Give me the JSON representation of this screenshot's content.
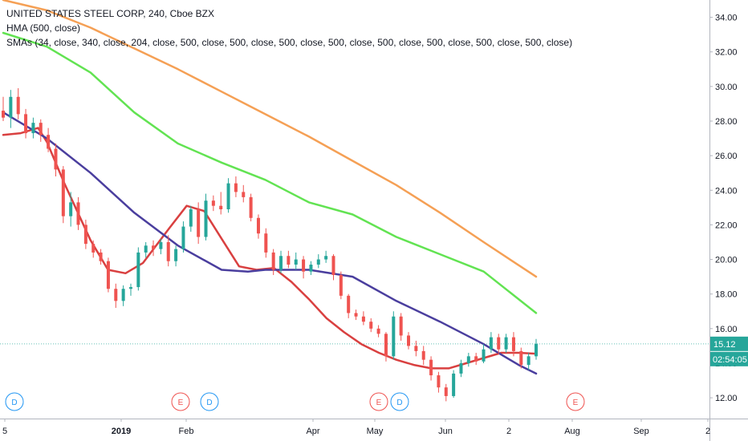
{
  "legend": {
    "line1": "UNITED STATES STEEL CORP, 240, Cboe BZX",
    "line2": "HMA (500, close)",
    "line3": "SMAs (34, close, 340, close, 204, close, 500, close, 500, close, 500, close, 500, close, 500, close, 500, close, 500, close, 500, close)"
  },
  "colors": {
    "up": "#26a69a",
    "down": "#ef5350",
    "sma34": "#d94040",
    "sma204": "#4a3e9e",
    "sma340": "#62e352",
    "sma500": "#f5a055",
    "last_price_bg": "#26a69a",
    "countdown_bg": "#26a69a",
    "event_d": "#2196f3",
    "event_e": "#ef5350"
  },
  "last_price": {
    "label": "15.12",
    "value": 15.12
  },
  "countdown": {
    "label": "02:54:05"
  },
  "chart_data": {
    "type": "candlestick",
    "ylim": [
      10.8,
      35.0
    ],
    "y_ticks": [
      "12.00",
      "14.00",
      "16.00",
      "18.00",
      "20.00",
      "22.00",
      "24.00",
      "26.00",
      "28.00",
      "30.00",
      "32.00",
      "34.00"
    ],
    "x_ticks": [
      "5",
      "2019",
      "Feb",
      "Apr",
      "May",
      "Jun",
      "2",
      "Aug",
      "Sep",
      "2"
    ],
    "candles": [
      {
        "o": 28.6,
        "h": 29.4,
        "l": 28.0,
        "c": 28.2
      },
      {
        "o": 28.2,
        "h": 29.8,
        "l": 27.6,
        "c": 29.4
      },
      {
        "o": 29.4,
        "h": 29.9,
        "l": 28.1,
        "c": 28.4
      },
      {
        "o": 28.4,
        "h": 28.7,
        "l": 27.0,
        "c": 27.3
      },
      {
        "o": 27.3,
        "h": 28.2,
        "l": 27.0,
        "c": 27.9
      },
      {
        "o": 27.9,
        "h": 28.1,
        "l": 26.8,
        "c": 27.2
      },
      {
        "o": 27.2,
        "h": 27.6,
        "l": 26.2,
        "c": 26.4
      },
      {
        "o": 26.4,
        "h": 26.7,
        "l": 24.8,
        "c": 25.2
      },
      {
        "o": 25.2,
        "h": 25.4,
        "l": 22.1,
        "c": 22.5
      },
      {
        "o": 22.5,
        "h": 23.9,
        "l": 21.9,
        "c": 23.3
      },
      {
        "o": 23.3,
        "h": 23.6,
        "l": 21.7,
        "c": 22.0
      },
      {
        "o": 22.0,
        "h": 22.3,
        "l": 20.6,
        "c": 20.9
      },
      {
        "o": 20.9,
        "h": 21.1,
        "l": 20.1,
        "c": 20.4
      },
      {
        "o": 20.4,
        "h": 20.6,
        "l": 19.7,
        "c": 19.9
      },
      {
        "o": 19.9,
        "h": 20.1,
        "l": 18.1,
        "c": 18.3
      },
      {
        "o": 18.3,
        "h": 18.6,
        "l": 17.2,
        "c": 17.6
      },
      {
        "o": 17.6,
        "h": 18.5,
        "l": 17.3,
        "c": 18.3
      },
      {
        "o": 18.3,
        "h": 18.6,
        "l": 17.9,
        "c": 18.4
      },
      {
        "o": 18.4,
        "h": 20.7,
        "l": 18.2,
        "c": 20.4
      },
      {
        "o": 20.4,
        "h": 21.0,
        "l": 20.1,
        "c": 20.8
      },
      {
        "o": 20.8,
        "h": 21.1,
        "l": 20.2,
        "c": 20.6
      },
      {
        "o": 20.6,
        "h": 21.2,
        "l": 20.3,
        "c": 21.0
      },
      {
        "o": 21.0,
        "h": 21.4,
        "l": 19.6,
        "c": 19.9
      },
      {
        "o": 19.9,
        "h": 20.8,
        "l": 19.6,
        "c": 20.6
      },
      {
        "o": 20.6,
        "h": 22.2,
        "l": 20.4,
        "c": 21.9
      },
      {
        "o": 21.9,
        "h": 23.1,
        "l": 21.6,
        "c": 22.9
      },
      {
        "o": 22.9,
        "h": 23.3,
        "l": 20.9,
        "c": 21.3
      },
      {
        "o": 21.3,
        "h": 23.8,
        "l": 21.1,
        "c": 23.4
      },
      {
        "o": 23.4,
        "h": 23.7,
        "l": 22.8,
        "c": 23.1
      },
      {
        "o": 23.1,
        "h": 23.9,
        "l": 22.6,
        "c": 22.9
      },
      {
        "o": 22.9,
        "h": 24.7,
        "l": 22.7,
        "c": 24.4
      },
      {
        "o": 24.4,
        "h": 24.8,
        "l": 23.6,
        "c": 23.9
      },
      {
        "o": 23.9,
        "h": 24.3,
        "l": 23.3,
        "c": 23.6
      },
      {
        "o": 23.6,
        "h": 23.8,
        "l": 22.2,
        "c": 22.4
      },
      {
        "o": 22.4,
        "h": 22.6,
        "l": 21.2,
        "c": 21.5
      },
      {
        "o": 21.5,
        "h": 21.8,
        "l": 20.1,
        "c": 20.4
      },
      {
        "o": 20.4,
        "h": 20.6,
        "l": 19.1,
        "c": 19.4
      },
      {
        "o": 19.4,
        "h": 20.5,
        "l": 19.2,
        "c": 20.2
      },
      {
        "o": 20.2,
        "h": 20.5,
        "l": 19.5,
        "c": 19.7
      },
      {
        "o": 19.7,
        "h": 20.4,
        "l": 19.4,
        "c": 20.0
      },
      {
        "o": 20.0,
        "h": 20.2,
        "l": 18.9,
        "c": 19.3
      },
      {
        "o": 19.3,
        "h": 19.9,
        "l": 19.1,
        "c": 19.7
      },
      {
        "o": 19.7,
        "h": 20.3,
        "l": 19.5,
        "c": 20.0
      },
      {
        "o": 20.0,
        "h": 20.5,
        "l": 19.8,
        "c": 20.2
      },
      {
        "o": 20.2,
        "h": 20.3,
        "l": 18.8,
        "c": 19.1
      },
      {
        "o": 19.1,
        "h": 19.3,
        "l": 17.7,
        "c": 17.9
      },
      {
        "o": 17.9,
        "h": 18.0,
        "l": 16.6,
        "c": 16.9
      },
      {
        "o": 16.9,
        "h": 17.1,
        "l": 16.5,
        "c": 16.7
      },
      {
        "o": 16.7,
        "h": 17.0,
        "l": 16.2,
        "c": 16.4
      },
      {
        "o": 16.4,
        "h": 16.6,
        "l": 15.8,
        "c": 16.0
      },
      {
        "o": 16.0,
        "h": 16.2,
        "l": 15.5,
        "c": 15.7
      },
      {
        "o": 15.7,
        "h": 15.8,
        "l": 14.1,
        "c": 14.4
      },
      {
        "o": 14.4,
        "h": 17.0,
        "l": 14.2,
        "c": 16.7
      },
      {
        "o": 16.7,
        "h": 16.9,
        "l": 15.3,
        "c": 15.6
      },
      {
        "o": 15.6,
        "h": 15.8,
        "l": 14.8,
        "c": 15.0
      },
      {
        "o": 15.0,
        "h": 15.3,
        "l": 14.4,
        "c": 14.7
      },
      {
        "o": 14.7,
        "h": 15.0,
        "l": 13.9,
        "c": 14.2
      },
      {
        "o": 14.2,
        "h": 14.4,
        "l": 13.0,
        "c": 13.3
      },
      {
        "o": 13.3,
        "h": 13.5,
        "l": 12.3,
        "c": 12.6
      },
      {
        "o": 12.6,
        "h": 12.8,
        "l": 11.8,
        "c": 12.1
      },
      {
        "o": 12.1,
        "h": 13.6,
        "l": 12.0,
        "c": 13.4
      },
      {
        "o": 13.4,
        "h": 14.2,
        "l": 13.2,
        "c": 14.0
      },
      {
        "o": 14.0,
        "h": 14.6,
        "l": 13.8,
        "c": 14.4
      },
      {
        "o": 14.4,
        "h": 14.6,
        "l": 13.9,
        "c": 14.1
      },
      {
        "o": 14.1,
        "h": 15.1,
        "l": 14.0,
        "c": 14.8
      },
      {
        "o": 14.8,
        "h": 15.8,
        "l": 14.6,
        "c": 15.5
      },
      {
        "o": 15.5,
        "h": 15.7,
        "l": 14.5,
        "c": 14.8
      },
      {
        "o": 14.8,
        "h": 15.7,
        "l": 14.6,
        "c": 15.5
      },
      {
        "o": 15.5,
        "h": 15.8,
        "l": 14.4,
        "c": 14.7
      },
      {
        "o": 14.7,
        "h": 14.9,
        "l": 13.7,
        "c": 13.9
      },
      {
        "o": 13.9,
        "h": 14.6,
        "l": 13.6,
        "c": 14.4
      },
      {
        "o": 14.4,
        "h": 15.4,
        "l": 14.2,
        "c": 15.12
      }
    ],
    "series": [
      {
        "name": "SMA 34",
        "key": "sma34",
        "points": [
          [
            0,
            27.2
          ],
          [
            4,
            27.3
          ],
          [
            8,
            27.6
          ],
          [
            10,
            26.8
          ],
          [
            14,
            24.4
          ],
          [
            20,
            21.1
          ],
          [
            24,
            19.4
          ],
          [
            28,
            19.2
          ],
          [
            32,
            19.8
          ],
          [
            38,
            21.8
          ],
          [
            42,
            23.1
          ],
          [
            46,
            22.8
          ],
          [
            50,
            21.2
          ],
          [
            54,
            19.6
          ],
          [
            58,
            19.4
          ],
          [
            62,
            19.5
          ],
          [
            66,
            18.7
          ],
          [
            70,
            17.7
          ],
          [
            74,
            16.6
          ],
          [
            78,
            15.8
          ],
          [
            82,
            15.1
          ],
          [
            86,
            14.6
          ],
          [
            90,
            14.2
          ],
          [
            94,
            13.9
          ],
          [
            98,
            13.7
          ],
          [
            102,
            13.7
          ],
          [
            106,
            14.0
          ],
          [
            110,
            14.3
          ],
          [
            114,
            14.6
          ],
          [
            118,
            14.6
          ],
          [
            122,
            14.55
          ]
        ]
      },
      {
        "name": "SMA 204",
        "key": "sma204",
        "points": [
          [
            0,
            28.5
          ],
          [
            10,
            27.0
          ],
          [
            20,
            25.0
          ],
          [
            30,
            22.7
          ],
          [
            40,
            20.8
          ],
          [
            50,
            19.4
          ],
          [
            56,
            19.3
          ],
          [
            60,
            19.4
          ],
          [
            70,
            19.4
          ],
          [
            80,
            19.0
          ],
          [
            90,
            17.6
          ],
          [
            100,
            16.4
          ],
          [
            110,
            15.1
          ],
          [
            118,
            13.9
          ],
          [
            122,
            13.4
          ]
        ]
      },
      {
        "name": "SMA 340",
        "key": "sma340",
        "points": [
          [
            0,
            33.1
          ],
          [
            10,
            32.3
          ],
          [
            20,
            30.8
          ],
          [
            30,
            28.5
          ],
          [
            40,
            26.7
          ],
          [
            50,
            25.6
          ],
          [
            60,
            24.6
          ],
          [
            70,
            23.3
          ],
          [
            80,
            22.6
          ],
          [
            90,
            21.3
          ],
          [
            100,
            20.3
          ],
          [
            110,
            19.3
          ],
          [
            122,
            16.9
          ]
        ]
      },
      {
        "name": "SMA 500",
        "key": "sma500",
        "points": [
          [
            0,
            35.0
          ],
          [
            10,
            34.4
          ],
          [
            20,
            33.4
          ],
          [
            30,
            32.2
          ],
          [
            40,
            31.0
          ],
          [
            50,
            29.7
          ],
          [
            60,
            28.4
          ],
          [
            70,
            27.1
          ],
          [
            80,
            25.7
          ],
          [
            90,
            24.3
          ],
          [
            100,
            22.7
          ],
          [
            110,
            21.0
          ],
          [
            122,
            19.0
          ]
        ]
      }
    ],
    "events": [
      {
        "label": "D",
        "kind": "D",
        "x_tick_index": 0
      },
      {
        "label": "E",
        "kind": "E",
        "x_tick_index": 2
      },
      {
        "label": "D",
        "kind": "D",
        "x_tick_index": 2
      },
      {
        "label": "E",
        "kind": "E",
        "x_tick_index": 4
      },
      {
        "label": "D",
        "kind": "D",
        "x_tick_index": 4
      },
      {
        "label": "E",
        "kind": "E",
        "x_tick_index": 7
      }
    ]
  }
}
